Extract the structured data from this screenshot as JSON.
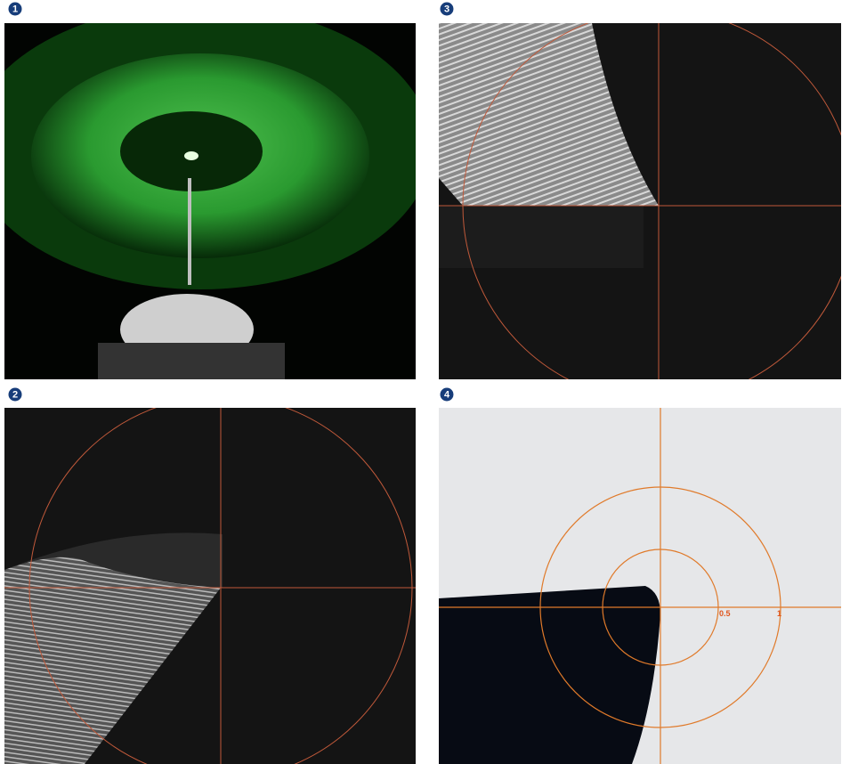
{
  "panels": [
    {
      "badge": "1"
    },
    {
      "badge": "2"
    },
    {
      "badge": "3"
    },
    {
      "badge": "4",
      "labels": [
        "0.5",
        "1"
      ]
    }
  ]
}
